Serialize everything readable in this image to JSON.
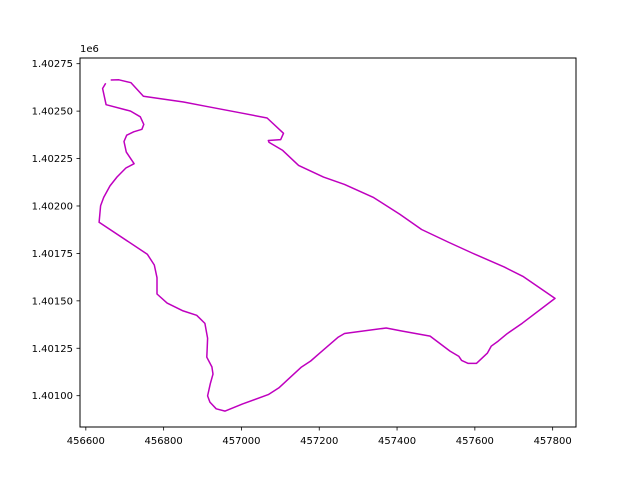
{
  "chart_data": {
    "type": "line",
    "title": "",
    "xlabel": "",
    "ylabel": "",
    "y_offset_label": "1e6",
    "xlim": [
      456585,
      457860
    ],
    "ylim": [
      1400835,
      1402780
    ],
    "x_ticks": [
      456600,
      456800,
      457000,
      457200,
      457400,
      457600,
      457800
    ],
    "x_tick_labels": [
      "456600",
      "456800",
      "457000",
      "457200",
      "457400",
      "457600",
      "457800"
    ],
    "y_ticks": [
      1401000,
      1401250,
      1401500,
      1401750,
      1402000,
      1402250,
      1402500,
      1402750
    ],
    "y_tick_labels": [
      "1.40100",
      "1.40125",
      "1.40150",
      "1.40175",
      "1.40200",
      "1.40225",
      "1.40250",
      "1.40275"
    ],
    "grid": false,
    "series": [
      {
        "color": "#bf00bf",
        "x": [
          456664,
          456685,
          456716,
          456748,
          456851,
          456907,
          456997,
          457066,
          457108,
          457101,
          457069,
          457071,
          457106,
          457147,
          457211,
          457265,
          457340,
          457407,
          457463,
          457531,
          457593,
          457676,
          457725,
          457806,
          457722,
          457683,
          457660,
          457642,
          457632,
          457604,
          457583,
          457566,
          457559,
          457536,
          457485,
          457412,
          457372,
          457265,
          457249,
          457200,
          457178,
          457153,
          457118,
          457096,
          457069,
          457003,
          456958,
          456935,
          456919,
          456913,
          456920,
          456927,
          456924,
          456911,
          456912,
          456913,
          456906,
          456885,
          456850,
          456809,
          456783,
          456783,
          456776,
          456758,
          456634,
          456638,
          456646,
          456662,
          456680,
          456703,
          456724,
          456704,
          456698,
          456705,
          456723,
          456744,
          456749,
          456740,
          456715,
          456652,
          456643,
          456651
        ],
        "y": [
          1402664,
          1402665,
          1402650,
          1402578,
          1402548,
          1402526,
          1402491,
          1402464,
          1402383,
          1402350,
          1402345,
          1402335,
          1402293,
          1402214,
          1402152,
          1402114,
          1402044,
          1401956,
          1401876,
          1401810,
          1401752,
          1401678,
          1401627,
          1401513,
          1401382,
          1401327,
          1401288,
          1401261,
          1401224,
          1401170,
          1401170,
          1401186,
          1401207,
          1401235,
          1401314,
          1401341,
          1401357,
          1401328,
          1401309,
          1401222,
          1401183,
          1401149,
          1401082,
          1401041,
          1401006,
          1400957,
          1400919,
          1400931,
          1400966,
          1400999,
          1401063,
          1401114,
          1401152,
          1401203,
          1401251,
          1401303,
          1401381,
          1401424,
          1401447,
          1401488,
          1401536,
          1401622,
          1401689,
          1401746,
          1401914,
          1402001,
          1402045,
          1402106,
          1402153,
          1402200,
          1402223,
          1402284,
          1402340,
          1402373,
          1402391,
          1402404,
          1402430,
          1402470,
          1402500,
          1402534,
          1402619,
          1402647
        ]
      }
    ]
  }
}
